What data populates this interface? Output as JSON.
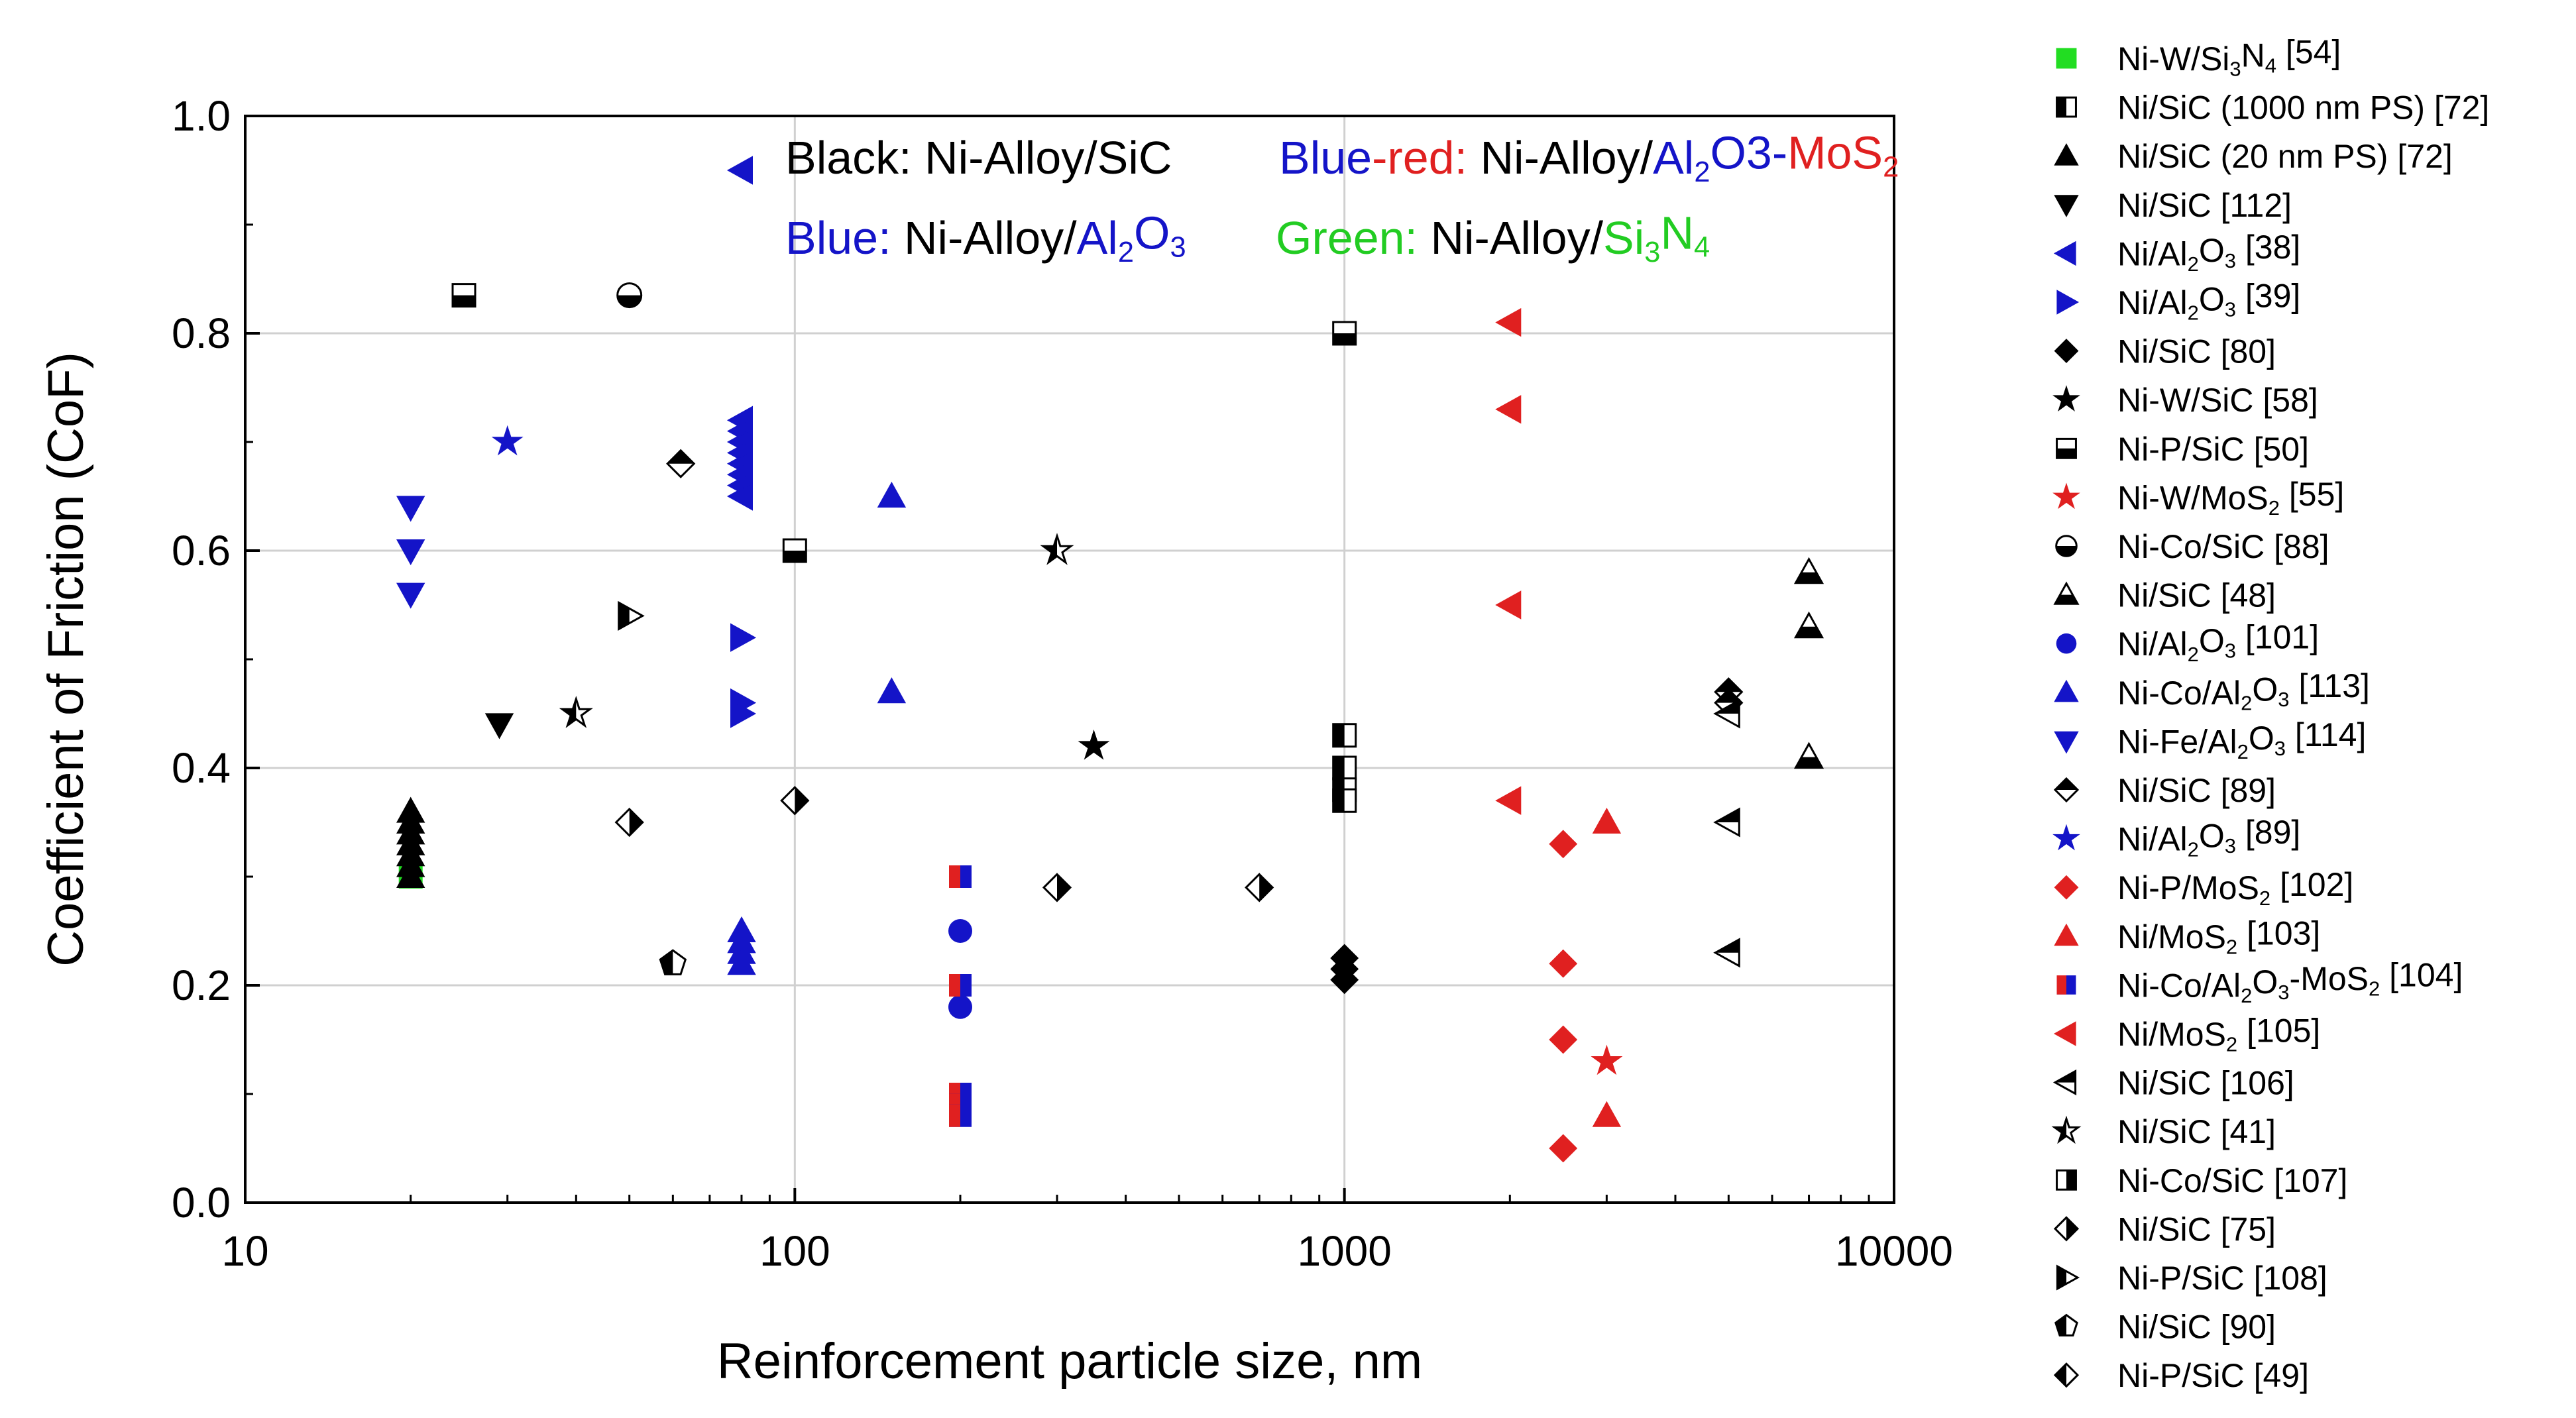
{
  "chart_data": {
    "type": "scatter",
    "title": "",
    "xlabel": "Reinforcement particle size, nm",
    "ylabel": "Coefficient of Friction (CoF)",
    "xscale": "log",
    "xlim": [
      10,
      10000
    ],
    "ylim": [
      0,
      1.0
    ],
    "xticks": [
      "10",
      "100",
      "1000",
      "10000"
    ],
    "yticks": [
      "0.0",
      "0.2",
      "0.4",
      "0.6",
      "0.8",
      "1.0"
    ],
    "grid": true,
    "annotations": [
      [
        {
          "t": "Black: ",
          "c": "#000000"
        },
        {
          "t": "Ni-Alloy/SiC",
          "c": "#000000"
        }
      ],
      [
        {
          "t": "Blue",
          "c": "#1414c8"
        },
        {
          "t": "-red: ",
          "c": "#e02020"
        },
        {
          "t": "Ni-Alloy/",
          "c": "#000000"
        },
        {
          "t": "Al",
          "c": "#1414c8"
        },
        {
          "t": "2",
          "c": "#1414c8",
          "sub": true
        },
        {
          "t": "O3-",
          "c": "#1414c8"
        },
        {
          "t": "MoS",
          "c": "#e02020"
        },
        {
          "t": "2",
          "c": "#e02020",
          "sub": true
        }
      ],
      [
        {
          "t": "Blue: ",
          "c": "#1414c8"
        },
        {
          "t": "Ni-Alloy/",
          "c": "#000000"
        },
        {
          "t": "Al",
          "c": "#1414c8"
        },
        {
          "t": "2",
          "c": "#1414c8",
          "sub": true
        },
        {
          "t": "O",
          "c": "#1414c8"
        },
        {
          "t": "3",
          "c": "#1414c8",
          "sub": true
        }
      ],
      [
        {
          "t": "Green: ",
          "c": "#22cc22"
        },
        {
          "t": "Ni-Alloy/",
          "c": "#000000"
        },
        {
          "t": "Si",
          "c": "#22cc22"
        },
        {
          "t": "3",
          "c": "#22cc22",
          "sub": true
        },
        {
          "t": "N",
          "c": "#22cc22"
        },
        {
          "t": "4",
          "c": "#22cc22",
          "sub": true
        }
      ]
    ],
    "series": [
      {
        "name": "Ni-W/Si3N4 [54]",
        "label": [
          {
            "t": "Ni-W/Si"
          },
          {
            "t": "3",
            "sub": true
          },
          {
            "t": "N"
          },
          {
            "t": "4",
            "sub": true
          },
          {
            "t": " [54]"
          }
        ],
        "marker": "square",
        "color": "#22dd22",
        "points": [
          [
            20,
            0.3
          ]
        ]
      },
      {
        "name": "Ni/SiC (1000 nm PS) [72]",
        "label": [
          {
            "t": "Ni/SiC (1000 nm PS) [72]"
          }
        ],
        "marker": "square-half-left",
        "color": "#000000",
        "points": [
          [
            1000,
            0.43
          ],
          [
            1000,
            0.4
          ],
          [
            1000,
            0.38
          ],
          [
            1000,
            0.37
          ]
        ]
      },
      {
        "name": "Ni/SiC (20 nm PS) [72]",
        "label": [
          {
            "t": "Ni/SiC (20 nm PS) [72]"
          }
        ],
        "marker": "triangle-up",
        "color": "#000000",
        "points": [
          [
            20,
            0.36
          ],
          [
            20,
            0.35
          ],
          [
            20,
            0.34
          ],
          [
            20,
            0.33
          ],
          [
            20,
            0.32
          ],
          [
            20,
            0.31
          ],
          [
            20,
            0.3
          ]
        ]
      },
      {
        "name": "Ni/SiC [112]",
        "label": [
          {
            "t": "Ni/SiC [112]"
          }
        ],
        "marker": "triangle-down",
        "color": "#000000",
        "points": [
          [
            29,
            0.44
          ]
        ]
      },
      {
        "name": "Ni/Al2O3 [38]",
        "label": [
          {
            "t": "Ni/Al"
          },
          {
            "t": "2",
            "sub": true
          },
          {
            "t": "O"
          },
          {
            "t": "3",
            "sub": true
          },
          {
            "t": " [38]"
          }
        ],
        "marker": "triangle-left",
        "color": "#1414c8",
        "points": [
          [
            80,
            0.95
          ],
          [
            80,
            0.72
          ],
          [
            80,
            0.71
          ],
          [
            80,
            0.7
          ],
          [
            80,
            0.69
          ],
          [
            80,
            0.68
          ],
          [
            80,
            0.67
          ],
          [
            80,
            0.66
          ],
          [
            80,
            0.65
          ]
        ]
      },
      {
        "name": "Ni/Al2O3 [39]",
        "label": [
          {
            "t": "Ni/Al"
          },
          {
            "t": "2",
            "sub": true
          },
          {
            "t": "O"
          },
          {
            "t": "3",
            "sub": true
          },
          {
            "t": " [39]"
          }
        ],
        "marker": "triangle-right",
        "color": "#1414c8",
        "points": [
          [
            80,
            0.52
          ],
          [
            80,
            0.46
          ],
          [
            80,
            0.45
          ]
        ]
      },
      {
        "name": "Ni/SiC [80]",
        "label": [
          {
            "t": "Ni/SiC [80]"
          }
        ],
        "marker": "diamond",
        "color": "#000000",
        "points": [
          [
            1000,
            0.225
          ],
          [
            1000,
            0.215
          ],
          [
            1000,
            0.205
          ]
        ]
      },
      {
        "name": "Ni-W/SiC [58]",
        "label": [
          {
            "t": "Ni-W/SiC [58]"
          }
        ],
        "marker": "star",
        "color": "#000000",
        "points": [
          [
            350,
            0.42
          ]
        ]
      },
      {
        "name": "Ni-P/SiC [50]",
        "label": [
          {
            "t": "Ni-P/SiC [50]"
          }
        ],
        "marker": "square-half-bottom",
        "color": "#000000",
        "points": [
          [
            25,
            0.835
          ],
          [
            100,
            0.6
          ],
          [
            1000,
            0.8
          ]
        ]
      },
      {
        "name": "Ni-W/MoS2 [55]",
        "label": [
          {
            "t": "Ni-W/MoS"
          },
          {
            "t": "2",
            "sub": true
          },
          {
            "t": " [55]"
          }
        ],
        "marker": "star",
        "color": "#e02020",
        "points": [
          [
            3000,
            0.13
          ]
        ]
      },
      {
        "name": "Ni-Co/SiC [88]",
        "label": [
          {
            "t": "Ni-Co/SiC  [88]"
          }
        ],
        "marker": "circle-half-bottom",
        "color": "#000000",
        "points": [
          [
            50,
            0.835
          ]
        ]
      },
      {
        "name": "Ni/SiC [48]",
        "label": [
          {
            "t": "Ni/SiC [48]"
          }
        ],
        "marker": "triangle-up-half-bottom",
        "color": "#000000",
        "points": [
          [
            7000,
            0.58
          ],
          [
            7000,
            0.53
          ],
          [
            7000,
            0.41
          ]
        ]
      },
      {
        "name": "Ni/Al2O3 [101]",
        "label": [
          {
            "t": "Ni/Al"
          },
          {
            "t": "2",
            "sub": true
          },
          {
            "t": "O"
          },
          {
            "t": "3",
            "sub": true
          },
          {
            "t": "  [101]"
          }
        ],
        "marker": "circle",
        "color": "#1414c8",
        "points": [
          [
            200,
            0.25
          ],
          [
            200,
            0.18
          ]
        ]
      },
      {
        "name": "Ni-Co/Al2O3 [113]",
        "label": [
          {
            "t": "Ni-Co/Al"
          },
          {
            "t": "2",
            "sub": true
          },
          {
            "t": "O"
          },
          {
            "t": "3",
            "sub": true
          },
          {
            "t": "  [113]"
          }
        ],
        "marker": "triangle-up",
        "color": "#1414c8",
        "points": [
          [
            80,
            0.25
          ],
          [
            80,
            0.24
          ],
          [
            80,
            0.23
          ],
          [
            80,
            0.22
          ],
          [
            150,
            0.65
          ],
          [
            150,
            0.47
          ]
        ]
      },
      {
        "name": "Ni-Fe/Al2O3 [114]",
        "label": [
          {
            "t": "Ni-Fe/Al"
          },
          {
            "t": "2",
            "sub": true
          },
          {
            "t": "O"
          },
          {
            "t": "3",
            "sub": true
          },
          {
            "t": " [114]"
          }
        ],
        "marker": "triangle-down",
        "color": "#1414c8",
        "points": [
          [
            20,
            0.64
          ],
          [
            20,
            0.6
          ],
          [
            20,
            0.56
          ]
        ]
      },
      {
        "name": "Ni/SiC [89]",
        "label": [
          {
            "t": "Ni/SiC [89]"
          }
        ],
        "marker": "diamond-half-top",
        "color": "#000000",
        "points": [
          [
            62,
            0.68
          ],
          [
            5000,
            0.47
          ],
          [
            5000,
            0.46
          ]
        ]
      },
      {
        "name": "Ni/Al2O3 [89]",
        "label": [
          {
            "t": "Ni/Al"
          },
          {
            "t": "2",
            "sub": true
          },
          {
            "t": "O"
          },
          {
            "t": "3",
            "sub": true
          },
          {
            "t": "  [89]"
          }
        ],
        "marker": "star",
        "color": "#1414c8",
        "points": [
          [
            30,
            0.7
          ]
        ]
      },
      {
        "name": "Ni-P/MoS2 [102]",
        "label": [
          {
            "t": "Ni-P/MoS"
          },
          {
            "t": "2",
            "sub": true
          },
          {
            "t": "  [102]"
          }
        ],
        "marker": "diamond",
        "color": "#e02020",
        "points": [
          [
            2500,
            0.33
          ],
          [
            2500,
            0.22
          ],
          [
            2500,
            0.15
          ],
          [
            2500,
            0.05
          ]
        ]
      },
      {
        "name": "Ni/MoS2 [103]",
        "label": [
          {
            "t": "Ni/MoS"
          },
          {
            "t": "2",
            "sub": true
          },
          {
            "t": " [103]"
          }
        ],
        "marker": "triangle-up",
        "color": "#e02020",
        "points": [
          [
            3000,
            0.35
          ],
          [
            3000,
            0.08
          ]
        ]
      },
      {
        "name": "Ni-Co/Al2O3-MoS2 [104]",
        "label": [
          {
            "t": "Ni-Co/Al"
          },
          {
            "t": "2",
            "sub": true
          },
          {
            "t": "O"
          },
          {
            "t": "3",
            "sub": true
          },
          {
            "t": "-MoS"
          },
          {
            "t": "2",
            "sub": true
          },
          {
            "t": " [104]"
          }
        ],
        "marker": "square-split",
        "color": "#1414c8",
        "color2": "#e02020",
        "points": [
          [
            200,
            0.3
          ],
          [
            200,
            0.2
          ],
          [
            200,
            0.1
          ],
          [
            200,
            0.09
          ],
          [
            200,
            0.08
          ]
        ]
      },
      {
        "name": "Ni/MoS2 [105]",
        "label": [
          {
            "t": "Ni/MoS"
          },
          {
            "t": "2",
            "sub": true
          },
          {
            "t": " [105]"
          }
        ],
        "marker": "triangle-left",
        "color": "#e02020",
        "points": [
          [
            2000,
            0.81
          ],
          [
            2000,
            0.73
          ],
          [
            2000,
            0.55
          ],
          [
            2000,
            0.37
          ]
        ]
      },
      {
        "name": "Ni/SiC [106]",
        "label": [
          {
            "t": "Ni/SiC  [106]"
          }
        ],
        "marker": "triangle-left-half",
        "color": "#000000",
        "points": [
          [
            5000,
            0.45
          ],
          [
            5000,
            0.35
          ],
          [
            5000,
            0.23
          ]
        ]
      },
      {
        "name": "Ni/SiC [41]",
        "label": [
          {
            "t": "Ni/SiC [41]"
          }
        ],
        "marker": "star-half",
        "color": "#000000",
        "points": [
          [
            40,
            0.45
          ],
          [
            300,
            0.6
          ]
        ]
      },
      {
        "name": "Ni-Co/SiC [107]",
        "label": [
          {
            "t": "Ni-Co/SiC  [107]"
          }
        ],
        "marker": "square-half-right",
        "color": "#000000",
        "points": []
      },
      {
        "name": "Ni/SiC [75]",
        "label": [
          {
            "t": "Ni/SiC [75]"
          }
        ],
        "marker": "diamond-half-right",
        "color": "#000000",
        "points": [
          [
            50,
            0.35
          ],
          [
            100,
            0.37
          ],
          [
            300,
            0.29
          ],
          [
            700,
            0.29
          ]
        ]
      },
      {
        "name": "Ni-P/SiC [108]",
        "label": [
          {
            "t": "Ni-P/SiC [108]"
          }
        ],
        "marker": "triangle-right-half",
        "color": "#000000",
        "points": [
          [
            50,
            0.54
          ]
        ]
      },
      {
        "name": "Ni/SiC [90]",
        "label": [
          {
            "t": "Ni/SiC [90]"
          }
        ],
        "marker": "pentagon-half",
        "color": "#000000",
        "points": [
          [
            60,
            0.22
          ]
        ]
      },
      {
        "name": "Ni-P/SiC [49]",
        "label": [
          {
            "t": "Ni-P/SiC  [49]"
          }
        ],
        "marker": "diamond-half-left",
        "color": "#000000",
        "points": []
      }
    ]
  }
}
